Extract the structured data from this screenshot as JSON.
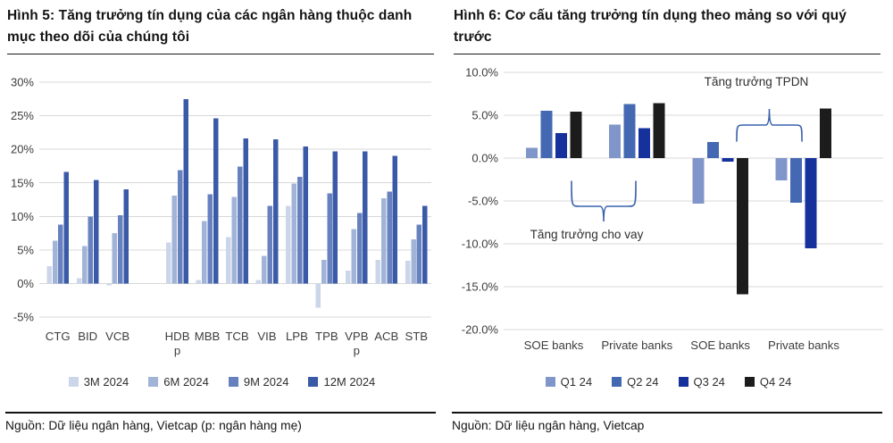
{
  "page": {
    "background": "#ffffff"
  },
  "chart_data": [
    {
      "id": "fig5",
      "type": "bar",
      "title": "Hình 5: Tăng trưởng tín dụng của các ngân hàng thuộc danh mục theo dõi của chúng tôi",
      "source": "Nguồn: Dữ liệu ngân hàng, Vietcap (p: ngân hàng mẹ)",
      "categories": [
        "CTG",
        "BID",
        "VCB",
        "HDB",
        "MBB",
        "TCB",
        "VIB",
        "LPB",
        "TPB",
        "VPB",
        "ACB",
        "STB"
      ],
      "category_sublabels": [
        "",
        "",
        "",
        "p",
        "",
        "",
        "",
        "",
        "",
        "p",
        "",
        ""
      ],
      "gap_after_index": 2,
      "series": [
        {
          "name": "3M 2024",
          "color": "#ccd6ea",
          "values": [
            2.6,
            0.8,
            -0.3,
            6.1,
            0.5,
            6.9,
            0.5,
            11.6,
            -3.6,
            1.9,
            3.5,
            3.4
          ]
        },
        {
          "name": "6M 2024",
          "color": "#a2b3d8",
          "values": [
            6.4,
            5.6,
            7.5,
            13.1,
            9.3,
            12.9,
            4.1,
            14.9,
            3.5,
            8.1,
            12.7,
            6.6
          ]
        },
        {
          "name": "9M 2024",
          "color": "#6781bf",
          "values": [
            8.8,
            10.0,
            10.2,
            16.9,
            13.3,
            17.4,
            11.6,
            15.9,
            13.4,
            10.5,
            13.7,
            8.8
          ]
        },
        {
          "name": "12M 2024",
          "color": "#3a5aa8",
          "values": [
            16.6,
            15.4,
            14.0,
            27.5,
            24.6,
            21.6,
            21.5,
            20.4,
            19.7,
            19.7,
            19.0,
            11.6
          ]
        }
      ],
      "ylim": [
        -5,
        30
      ],
      "ytick_step": 5,
      "ytick_decimals": 0,
      "grid": true,
      "legend_position": "bottom"
    },
    {
      "id": "fig6",
      "type": "bar",
      "title": "Hình 6: Cơ cấu tăng trưởng tín dụng theo mảng so với quý trước",
      "source": "Nguồn: Dữ liệu ngân hàng, Vietcap",
      "categories": [
        "SOE banks",
        "Private banks",
        "SOE banks",
        "Private banks"
      ],
      "series": [
        {
          "name": "Q1 24",
          "color": "#8096ca",
          "values": [
            1.2,
            3.9,
            -5.3,
            -2.6
          ]
        },
        {
          "name": "Q2 24",
          "color": "#4568b2",
          "values": [
            5.5,
            6.3,
            1.9,
            -5.2
          ]
        },
        {
          "name": "Q3 24",
          "color": "#16319c",
          "values": [
            2.9,
            3.5,
            -0.4,
            -10.5
          ]
        },
        {
          "name": "Q4 24",
          "color": "#1c1c1c",
          "values": [
            5.4,
            6.4,
            -15.9,
            5.8
          ]
        }
      ],
      "ylim": [
        -20,
        10
      ],
      "ytick_step": 5,
      "ytick_decimals": 1,
      "grid": true,
      "legend_position": "bottom",
      "annotations": [
        {
          "text": "Tăng trưởng cho vay",
          "type": "brace-down",
          "groups": [
            0,
            1
          ]
        },
        {
          "text": "Tăng trưởng TPDN",
          "type": "brace-up",
          "groups": [
            2,
            3
          ]
        }
      ],
      "annotation_color": "#3a62ad"
    }
  ],
  "style_colors": {
    "grid": "#d8d8d8",
    "tick_text": "#3d3d3d",
    "title_text": "#141414"
  }
}
